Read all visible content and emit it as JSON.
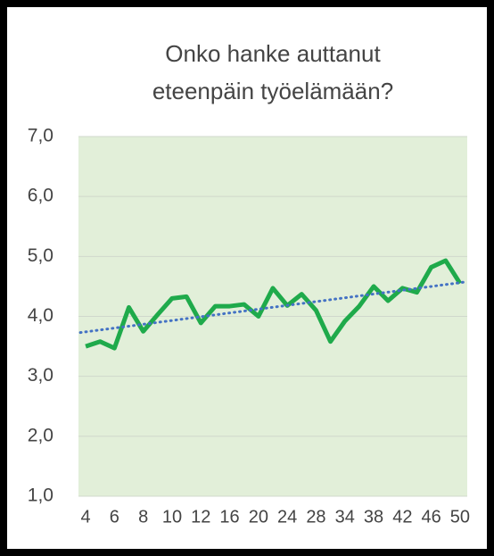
{
  "chart_data": {
    "type": "line",
    "title": [
      "Onko  hanke auttanut",
      "eteenpäin työelämään?"
    ],
    "categories": [
      "4",
      null,
      "6",
      null,
      "8",
      null,
      "10",
      null,
      "12",
      null,
      "16",
      null,
      "20",
      null,
      "24",
      null,
      "28",
      null,
      "34",
      null,
      "38",
      null,
      "42",
      null,
      "46",
      null,
      "50"
    ],
    "series": [
      {
        "color": "#1faa4b",
        "values": [
          3.5,
          3.58,
          3.47,
          4.15,
          3.75,
          4.03,
          4.3,
          4.33,
          3.89,
          4.17,
          4.17,
          4.2,
          4.0,
          4.47,
          4.18,
          4.37,
          4.1,
          3.58,
          3.92,
          4.17,
          4.5,
          4.26,
          4.47,
          4.4,
          4.82,
          4.93,
          4.55
        ]
      }
    ],
    "trendline": {
      "color": "#4472c4",
      "values": [
        3.73,
        4.57
      ]
    },
    "ylim": [
      1,
      7
    ],
    "yticks": [
      {
        "value": 1,
        "label": "1,0"
      },
      {
        "value": 2,
        "label": "2,0"
      },
      {
        "value": 3,
        "label": "3,0"
      },
      {
        "value": 4,
        "label": "4,0"
      },
      {
        "value": 5,
        "label": "5,0"
      },
      {
        "value": 6,
        "label": "6,0"
      },
      {
        "value": 7,
        "label": "7,0"
      }
    ],
    "grid": true,
    "plot_background": "#e2efd9"
  }
}
